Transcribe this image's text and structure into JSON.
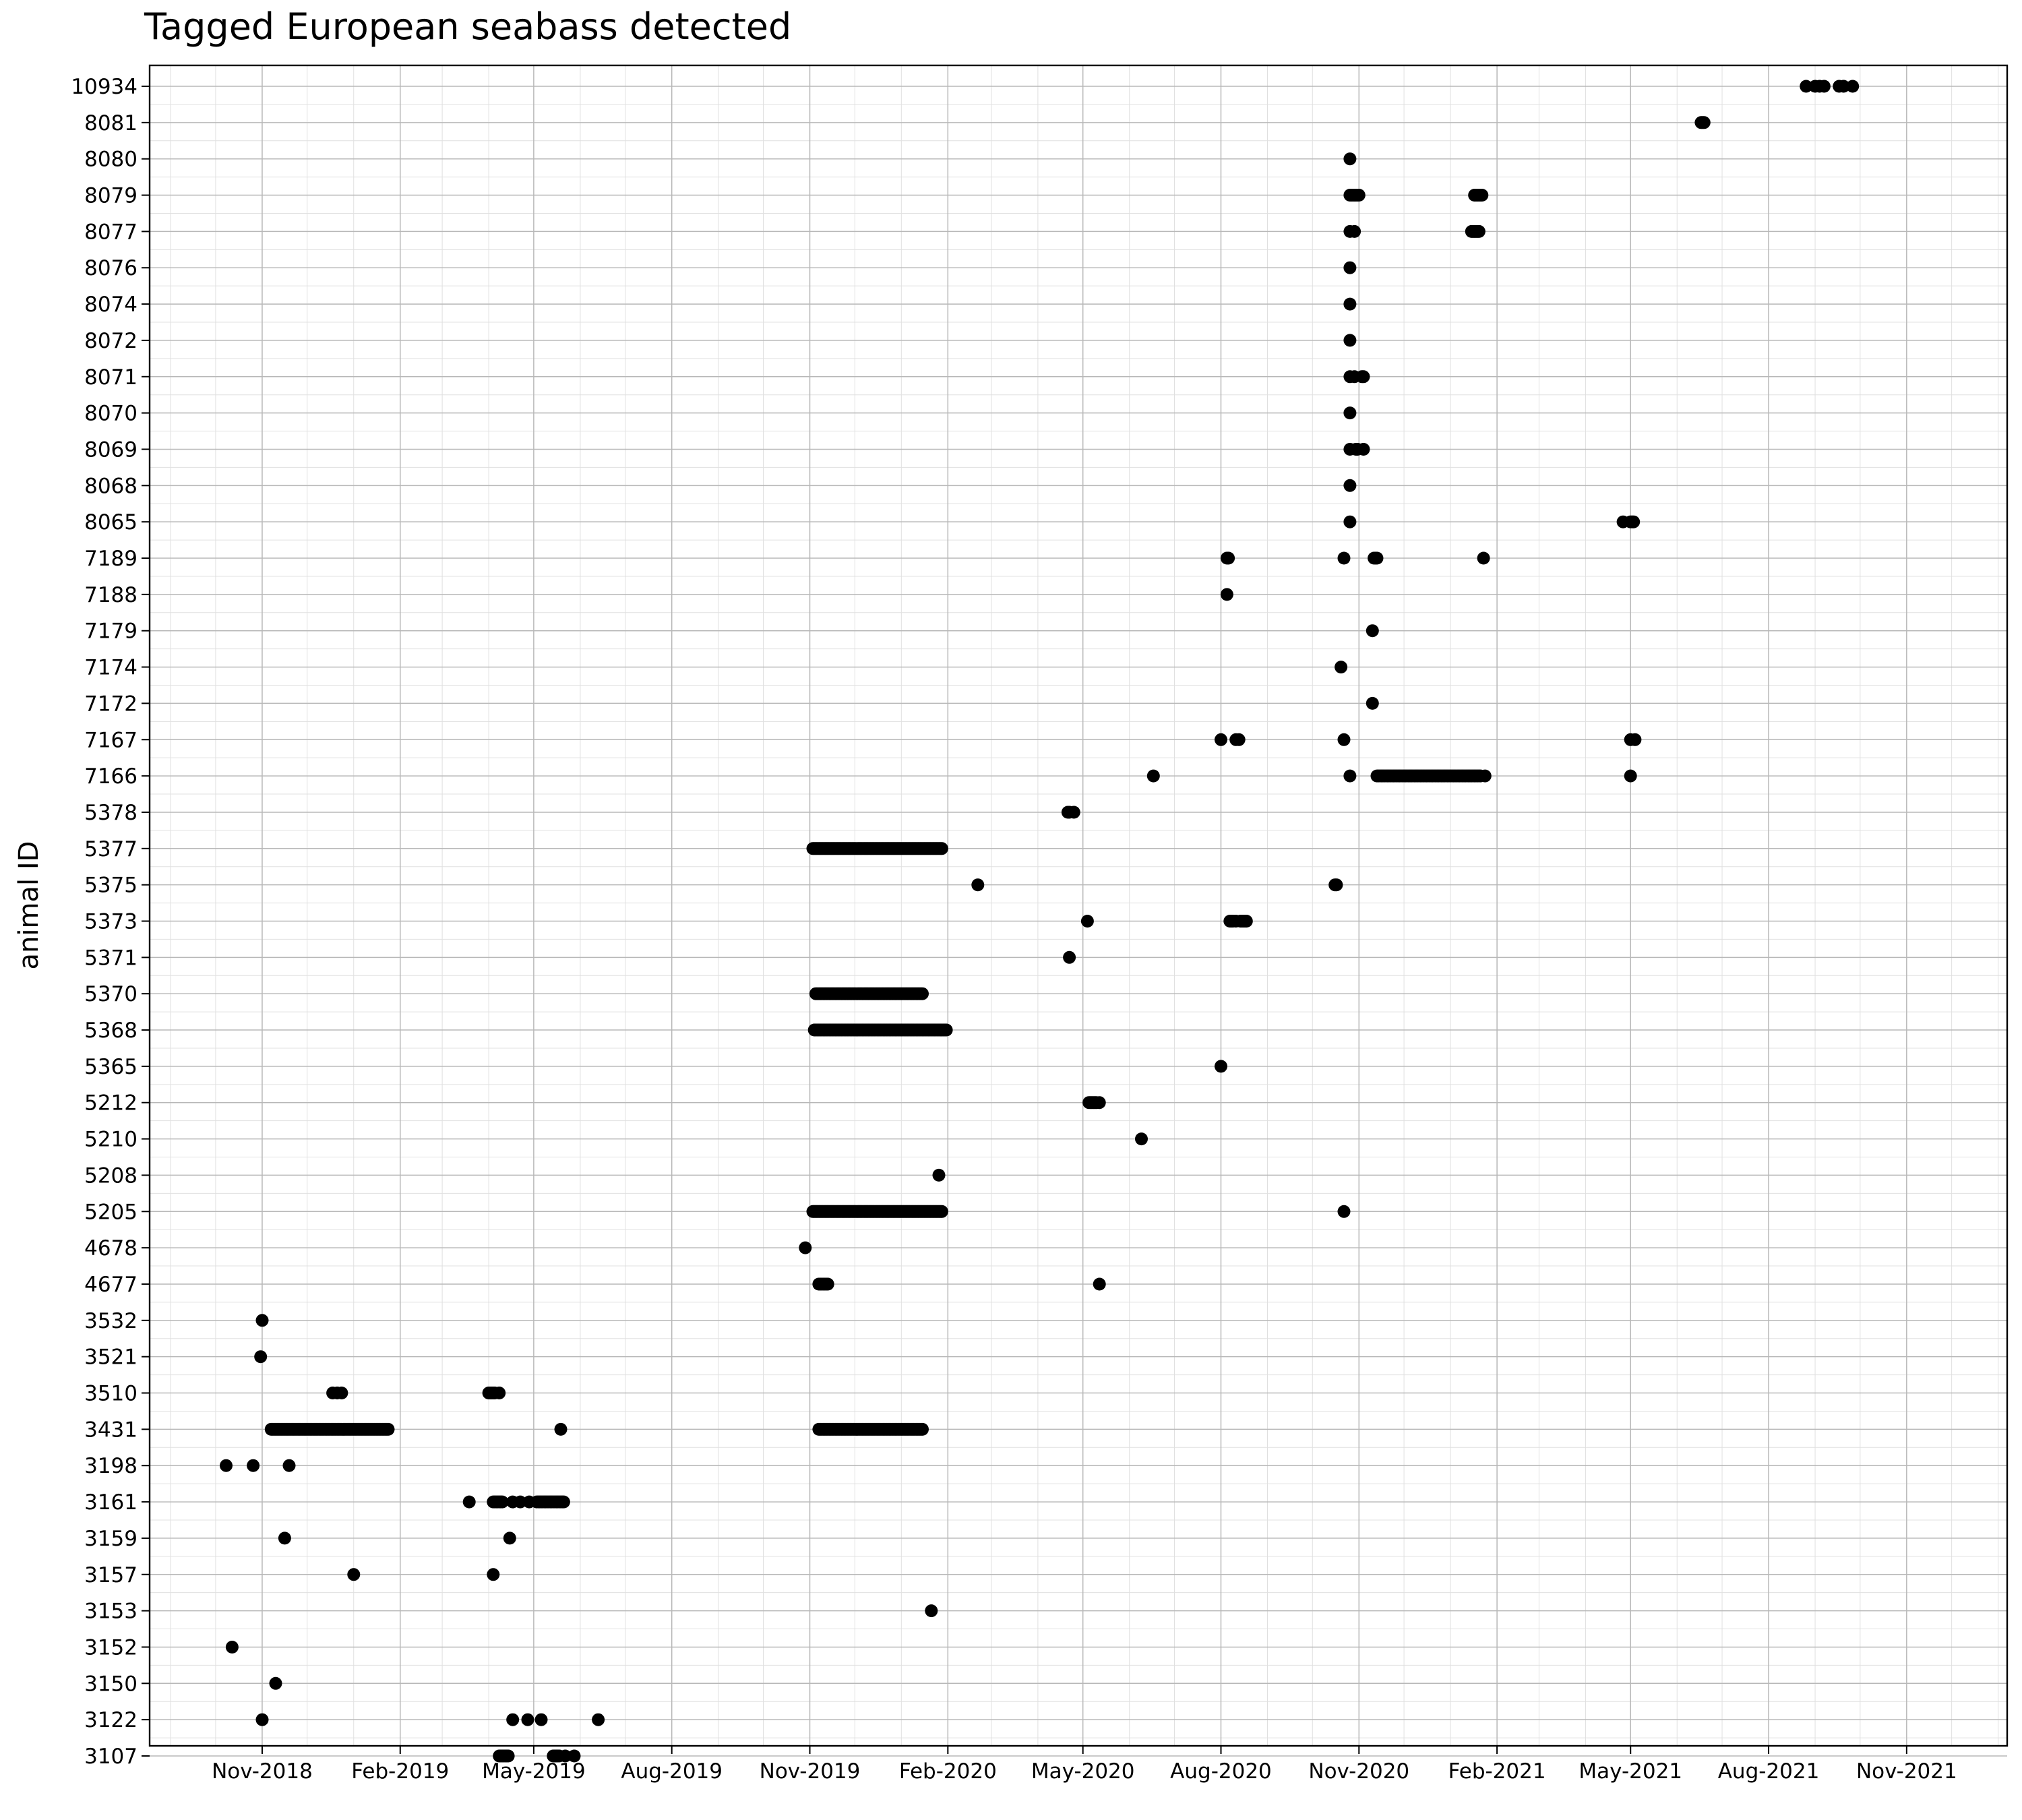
{
  "chart_data": {
    "type": "scatter",
    "title": "Tagged European seabass detected",
    "xlabel": "",
    "ylabel": "animal ID",
    "x_ticks": [
      "Nov-2018",
      "Feb-2019",
      "May-2019",
      "Aug-2019",
      "Nov-2019",
      "Feb-2020",
      "May-2020",
      "Aug-2020",
      "Nov-2020",
      "Feb-2021",
      "May-2021",
      "Aug-2021",
      "Nov-2021"
    ],
    "x_tick_dates": [
      "2018-11-01",
      "2019-02-01",
      "2019-05-01",
      "2019-08-01",
      "2019-11-01",
      "2020-02-01",
      "2020-05-01",
      "2020-08-01",
      "2020-11-01",
      "2021-02-01",
      "2021-05-01",
      "2021-08-01",
      "2021-11-01"
    ],
    "xlim": [
      "2018-08-18",
      "2022-01-07"
    ],
    "grid": true,
    "categories": [
      "3107",
      "3122",
      "3150",
      "3152",
      "3153",
      "3157",
      "3159",
      "3161",
      "3198",
      "3431",
      "3510",
      "3521",
      "3532",
      "4677",
      "4678",
      "5205",
      "5208",
      "5210",
      "5212",
      "5365",
      "5368",
      "5370",
      "5371",
      "5373",
      "5375",
      "5377",
      "5378",
      "7166",
      "7167",
      "7172",
      "7174",
      "7179",
      "7188",
      "7189",
      "8065",
      "8068",
      "8069",
      "8070",
      "8071",
      "8072",
      "8074",
      "8076",
      "8077",
      "8079",
      "8080",
      "8081",
      "10934"
    ],
    "series": [
      {
        "id": "10934",
        "points": [
          {
            "start": "2021-08-26"
          },
          {
            "start": "2021-09-01"
          },
          {
            "start": "2021-09-04"
          },
          {
            "start": "2021-09-07"
          },
          {
            "start": "2021-09-17"
          },
          {
            "start": "2021-09-20"
          },
          {
            "start": "2021-09-26"
          }
        ]
      },
      {
        "id": "8081",
        "points": [
          {
            "start": "2021-06-17",
            "end": "2021-06-19"
          }
        ]
      },
      {
        "id": "8080",
        "points": [
          {
            "start": "2020-10-26"
          }
        ]
      },
      {
        "id": "8079",
        "points": [
          {
            "start": "2020-10-26",
            "end": "2020-11-01"
          },
          {
            "start": "2021-01-17",
            "end": "2021-01-22"
          }
        ]
      },
      {
        "id": "8077",
        "points": [
          {
            "start": "2020-10-26"
          },
          {
            "start": "2020-10-29"
          },
          {
            "start": "2021-01-15",
            "end": "2021-01-20"
          }
        ]
      },
      {
        "id": "8076",
        "points": [
          {
            "start": "2020-10-26"
          }
        ]
      },
      {
        "id": "8074",
        "points": [
          {
            "start": "2020-10-26"
          }
        ]
      },
      {
        "id": "8072",
        "points": [
          {
            "start": "2020-10-26"
          }
        ]
      },
      {
        "id": "8071",
        "points": [
          {
            "start": "2020-10-26"
          },
          {
            "start": "2020-10-29"
          },
          {
            "start": "2020-11-03",
            "end": "2020-11-04"
          }
        ]
      },
      {
        "id": "8070",
        "points": [
          {
            "start": "2020-10-26"
          }
        ]
      },
      {
        "id": "8069",
        "points": [
          {
            "start": "2020-10-26"
          },
          {
            "start": "2020-10-30",
            "end": "2020-10-31"
          },
          {
            "start": "2020-11-04"
          }
        ]
      },
      {
        "id": "8068",
        "points": [
          {
            "start": "2020-10-26"
          }
        ]
      },
      {
        "id": "8065",
        "points": [
          {
            "start": "2020-10-26"
          },
          {
            "start": "2021-04-26"
          },
          {
            "start": "2021-05-01",
            "end": "2021-05-03"
          }
        ]
      },
      {
        "id": "7189",
        "points": [
          {
            "start": "2020-08-05",
            "end": "2020-08-06"
          },
          {
            "start": "2020-10-22"
          },
          {
            "start": "2020-11-11",
            "end": "2020-11-13"
          },
          {
            "start": "2021-01-23"
          }
        ]
      },
      {
        "id": "7188",
        "points": [
          {
            "start": "2020-08-05"
          }
        ]
      },
      {
        "id": "7179",
        "points": [
          {
            "start": "2020-11-10"
          }
        ]
      },
      {
        "id": "7174",
        "points": [
          {
            "start": "2020-10-20"
          }
        ]
      },
      {
        "id": "7172",
        "points": [
          {
            "start": "2020-11-10"
          }
        ]
      },
      {
        "id": "7167",
        "points": [
          {
            "start": "2020-08-01"
          },
          {
            "start": "2020-08-11"
          },
          {
            "start": "2020-08-13"
          },
          {
            "start": "2020-10-22"
          },
          {
            "start": "2021-05-01"
          },
          {
            "start": "2021-05-04"
          }
        ]
      },
      {
        "id": "7166",
        "points": [
          {
            "start": "2020-06-17"
          },
          {
            "start": "2020-10-26"
          },
          {
            "start": "2020-11-13",
            "end": "2021-01-21"
          },
          {
            "start": "2021-01-24"
          },
          {
            "start": "2021-05-01"
          }
        ]
      },
      {
        "id": "5378",
        "points": [
          {
            "start": "2020-04-21",
            "end": "2020-04-22"
          },
          {
            "start": "2020-04-25"
          }
        ]
      },
      {
        "id": "5377",
        "points": [
          {
            "start": "2019-11-03",
            "end": "2020-01-28"
          }
        ]
      },
      {
        "id": "5375",
        "points": [
          {
            "start": "2020-02-21"
          },
          {
            "start": "2020-10-16",
            "end": "2020-10-17"
          }
        ]
      },
      {
        "id": "5373",
        "points": [
          {
            "start": "2020-05-04"
          },
          {
            "start": "2020-08-07",
            "end": "2020-08-09"
          },
          {
            "start": "2020-08-11"
          },
          {
            "start": "2020-08-14",
            "end": "2020-08-18"
          }
        ]
      },
      {
        "id": "5371",
        "points": [
          {
            "start": "2020-04-22"
          }
        ]
      },
      {
        "id": "5370",
        "points": [
          {
            "start": "2019-11-05",
            "end": "2020-01-15"
          }
        ]
      },
      {
        "id": "5368",
        "points": [
          {
            "start": "2019-11-04",
            "end": "2020-01-31"
          }
        ]
      },
      {
        "id": "5365",
        "points": [
          {
            "start": "2020-08-01"
          }
        ]
      },
      {
        "id": "5212",
        "points": [
          {
            "start": "2020-05-05",
            "end": "2020-05-10"
          },
          {
            "start": "2020-05-12"
          }
        ]
      },
      {
        "id": "5210",
        "points": [
          {
            "start": "2020-06-09"
          }
        ]
      },
      {
        "id": "5208",
        "points": [
          {
            "start": "2020-01-26"
          }
        ]
      },
      {
        "id": "5205",
        "points": [
          {
            "start": "2019-11-03",
            "end": "2020-01-28"
          },
          {
            "start": "2020-10-22"
          }
        ]
      },
      {
        "id": "4678",
        "points": [
          {
            "start": "2019-10-29"
          }
        ]
      },
      {
        "id": "4677",
        "points": [
          {
            "start": "2019-11-07",
            "end": "2019-11-13"
          },
          {
            "start": "2020-05-12"
          }
        ]
      },
      {
        "id": "3532",
        "points": [
          {
            "start": "2018-11-01"
          }
        ]
      },
      {
        "id": "3521",
        "points": [
          {
            "start": "2018-10-31"
          }
        ]
      },
      {
        "id": "3510",
        "points": [
          {
            "start": "2018-12-18"
          },
          {
            "start": "2018-12-21"
          },
          {
            "start": "2018-12-24"
          },
          {
            "start": "2019-04-01",
            "end": "2019-04-05"
          },
          {
            "start": "2019-04-08"
          }
        ]
      },
      {
        "id": "3431",
        "points": [
          {
            "start": "2018-11-07",
            "end": "2019-01-24"
          },
          {
            "start": "2019-05-19"
          },
          {
            "start": "2019-11-07",
            "end": "2020-01-15"
          }
        ]
      },
      {
        "id": "3198",
        "points": [
          {
            "start": "2018-10-08"
          },
          {
            "start": "2018-10-26"
          },
          {
            "start": "2018-11-19"
          }
        ]
      },
      {
        "id": "3161",
        "points": [
          {
            "start": "2019-03-19"
          },
          {
            "start": "2019-04-04",
            "end": "2019-04-10"
          },
          {
            "start": "2019-04-17"
          },
          {
            "start": "2019-04-22"
          },
          {
            "start": "2019-04-28"
          },
          {
            "start": "2019-05-03",
            "end": "2019-05-21"
          }
        ]
      },
      {
        "id": "3159",
        "points": [
          {
            "start": "2018-11-16"
          },
          {
            "start": "2019-04-15"
          }
        ]
      },
      {
        "id": "3157",
        "points": [
          {
            "start": "2019-01-01"
          },
          {
            "start": "2019-04-04"
          }
        ]
      },
      {
        "id": "3153",
        "points": [
          {
            "start": "2020-01-21"
          }
        ]
      },
      {
        "id": "3152",
        "points": [
          {
            "start": "2018-10-12"
          }
        ]
      },
      {
        "id": "3150",
        "points": [
          {
            "start": "2018-11-10"
          }
        ]
      },
      {
        "id": "3122",
        "points": [
          {
            "start": "2018-11-01"
          },
          {
            "start": "2019-04-17"
          },
          {
            "start": "2019-04-27"
          },
          {
            "start": "2019-05-06"
          },
          {
            "start": "2019-06-13"
          }
        ]
      },
      {
        "id": "3107",
        "points": [
          {
            "start": "2019-04-08",
            "end": "2019-04-14"
          },
          {
            "start": "2019-05-14",
            "end": "2019-05-18"
          },
          {
            "start": "2019-05-22"
          },
          {
            "start": "2019-05-28"
          }
        ]
      }
    ]
  }
}
